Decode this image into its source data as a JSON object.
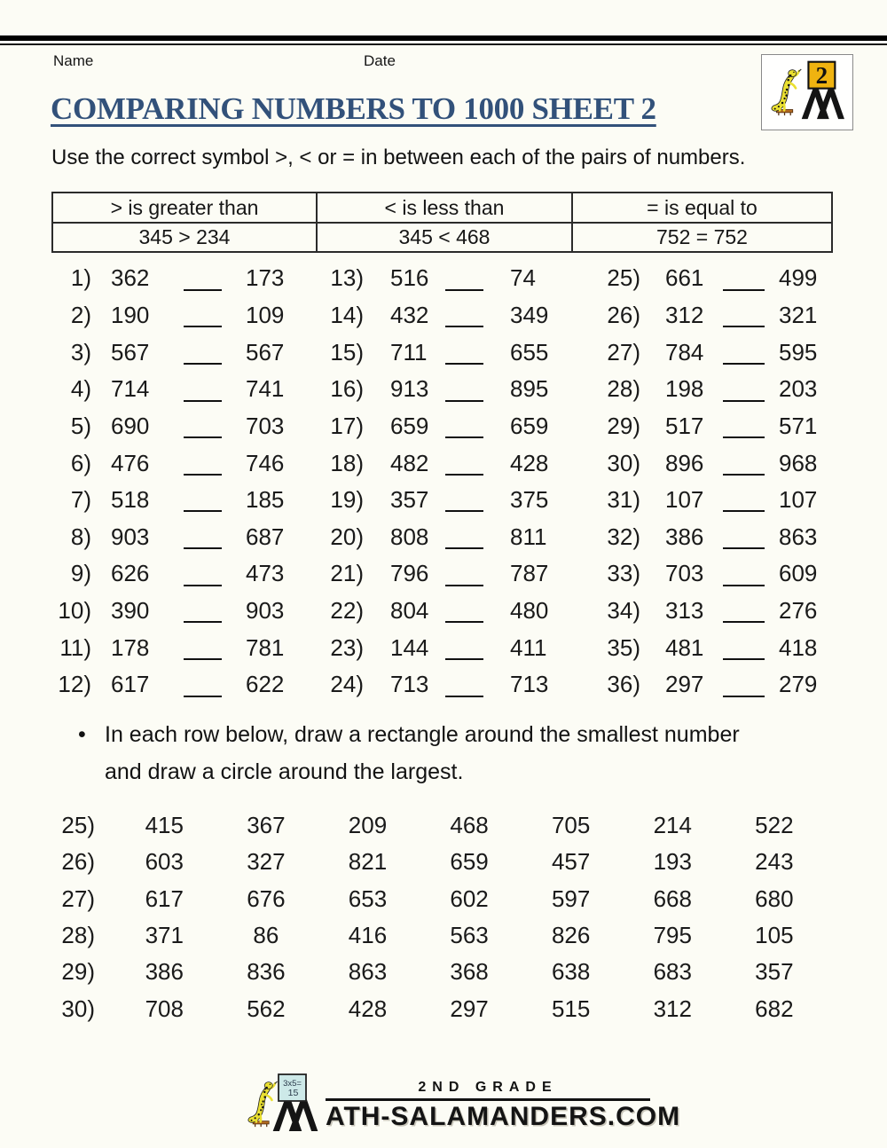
{
  "header": {
    "name_label": "Name",
    "date_label": "Date",
    "title": "COMPARING NUMBERS TO 1000 SHEET 2",
    "instruction": "Use the correct symbol >, < or = in between each of the pairs of numbers.",
    "logo_badge_number": "2"
  },
  "legend": {
    "columns": [
      {
        "header": "> is greater than",
        "example": "345 > 234"
      },
      {
        "header": "< is less than",
        "example": "345 < 468"
      },
      {
        "header": "= is equal to",
        "example": "752 = 752"
      }
    ]
  },
  "problems": {
    "columns": [
      {
        "start": 1,
        "pairs": [
          [
            "362",
            "173"
          ],
          [
            "190",
            "109"
          ],
          [
            "567",
            "567"
          ],
          [
            "714",
            "741"
          ],
          [
            "690",
            "703"
          ],
          [
            "476",
            "746"
          ],
          [
            "518",
            "185"
          ],
          [
            "903",
            "687"
          ],
          [
            "626",
            "473"
          ],
          [
            "390",
            "903"
          ],
          [
            "178",
            "781"
          ],
          [
            "617",
            "622"
          ]
        ]
      },
      {
        "start": 13,
        "pairs": [
          [
            "516",
            "74"
          ],
          [
            "432",
            "349"
          ],
          [
            "711",
            "655"
          ],
          [
            "913",
            "895"
          ],
          [
            "659",
            "659"
          ],
          [
            "482",
            "428"
          ],
          [
            "357",
            "375"
          ],
          [
            "808",
            "811"
          ],
          [
            "796",
            "787"
          ],
          [
            "804",
            "480"
          ],
          [
            "144",
            "411"
          ],
          [
            "713",
            "713"
          ]
        ]
      },
      {
        "start": 25,
        "pairs": [
          [
            "661",
            "499"
          ],
          [
            "312",
            "321"
          ],
          [
            "784",
            "595"
          ],
          [
            "198",
            "203"
          ],
          [
            "517",
            "571"
          ],
          [
            "896",
            "968"
          ],
          [
            "107",
            "107"
          ],
          [
            "386",
            "863"
          ],
          [
            "703",
            "609"
          ],
          [
            "313",
            "276"
          ],
          [
            "481",
            "418"
          ],
          [
            "297",
            "279"
          ]
        ]
      }
    ]
  },
  "section2": {
    "bullet_line1": "In each row below, draw a rectangle around the smallest number",
    "bullet_line2": "and draw a circle around the largest.",
    "start": 25,
    "rows": [
      [
        "415",
        "367",
        "209",
        "468",
        "705",
        "214",
        "522"
      ],
      [
        "603",
        "327",
        "821",
        "659",
        "457",
        "193",
        "243"
      ],
      [
        "617",
        "676",
        "653",
        "602",
        "597",
        "668",
        "680"
      ],
      [
        "371",
        "86",
        "416",
        "563",
        "826",
        "795",
        "105"
      ],
      [
        "386",
        "836",
        "863",
        "368",
        "638",
        "683",
        "357"
      ],
      [
        "708",
        "562",
        "428",
        "297",
        "515",
        "312",
        "682"
      ]
    ]
  },
  "footer": {
    "grade_text": "2ND GRADE",
    "site_text": "ATH-SALAMANDERS.COM",
    "board_line1": "3x5=",
    "board_line2": "15"
  },
  "colors": {
    "title_blue": "#32517a",
    "badge_yellow": "#efb310",
    "salamander_yellow": "#eae031",
    "board_teal": "#cde9e8"
  }
}
